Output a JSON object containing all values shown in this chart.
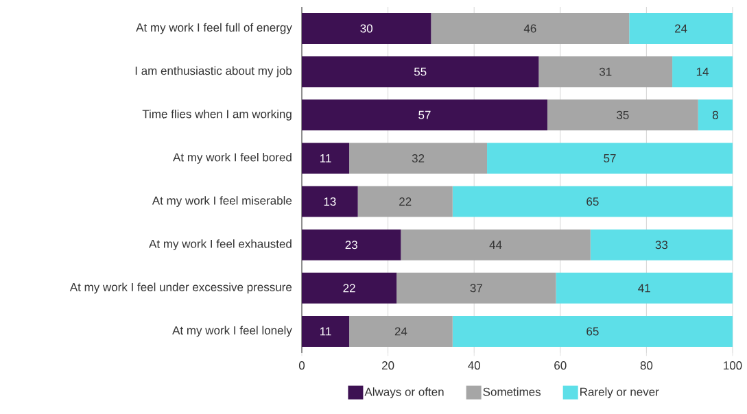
{
  "chart_data": {
    "type": "bar",
    "orientation": "horizontal",
    "stacked": true,
    "data_labels": true,
    "grid": "x",
    "legend": "bottom",
    "categories": [
      "At my work I feel full of energy",
      "I am enthusiastic about my job",
      "Time flies when I am working",
      "At my work I feel bored",
      "At my work I feel miserable",
      "At my work I feel exhausted",
      "At my work I feel under excessive pressure",
      "At my work I feel lonely"
    ],
    "series": [
      {
        "name": "Always or often",
        "color": "#3d1152",
        "values": [
          30,
          55,
          57,
          11,
          13,
          23,
          22,
          11
        ]
      },
      {
        "name": "Sometimes",
        "color": "#a6a6a6",
        "values": [
          46,
          31,
          35,
          32,
          22,
          44,
          37,
          24
        ]
      },
      {
        "name": "Rarely or never",
        "color": "#5ddfe8",
        "values": [
          24,
          14,
          8,
          57,
          65,
          33,
          41,
          65
        ]
      }
    ],
    "xlim": [
      0,
      100
    ],
    "xticks": [
      0,
      20,
      40,
      60,
      80,
      100
    ]
  }
}
